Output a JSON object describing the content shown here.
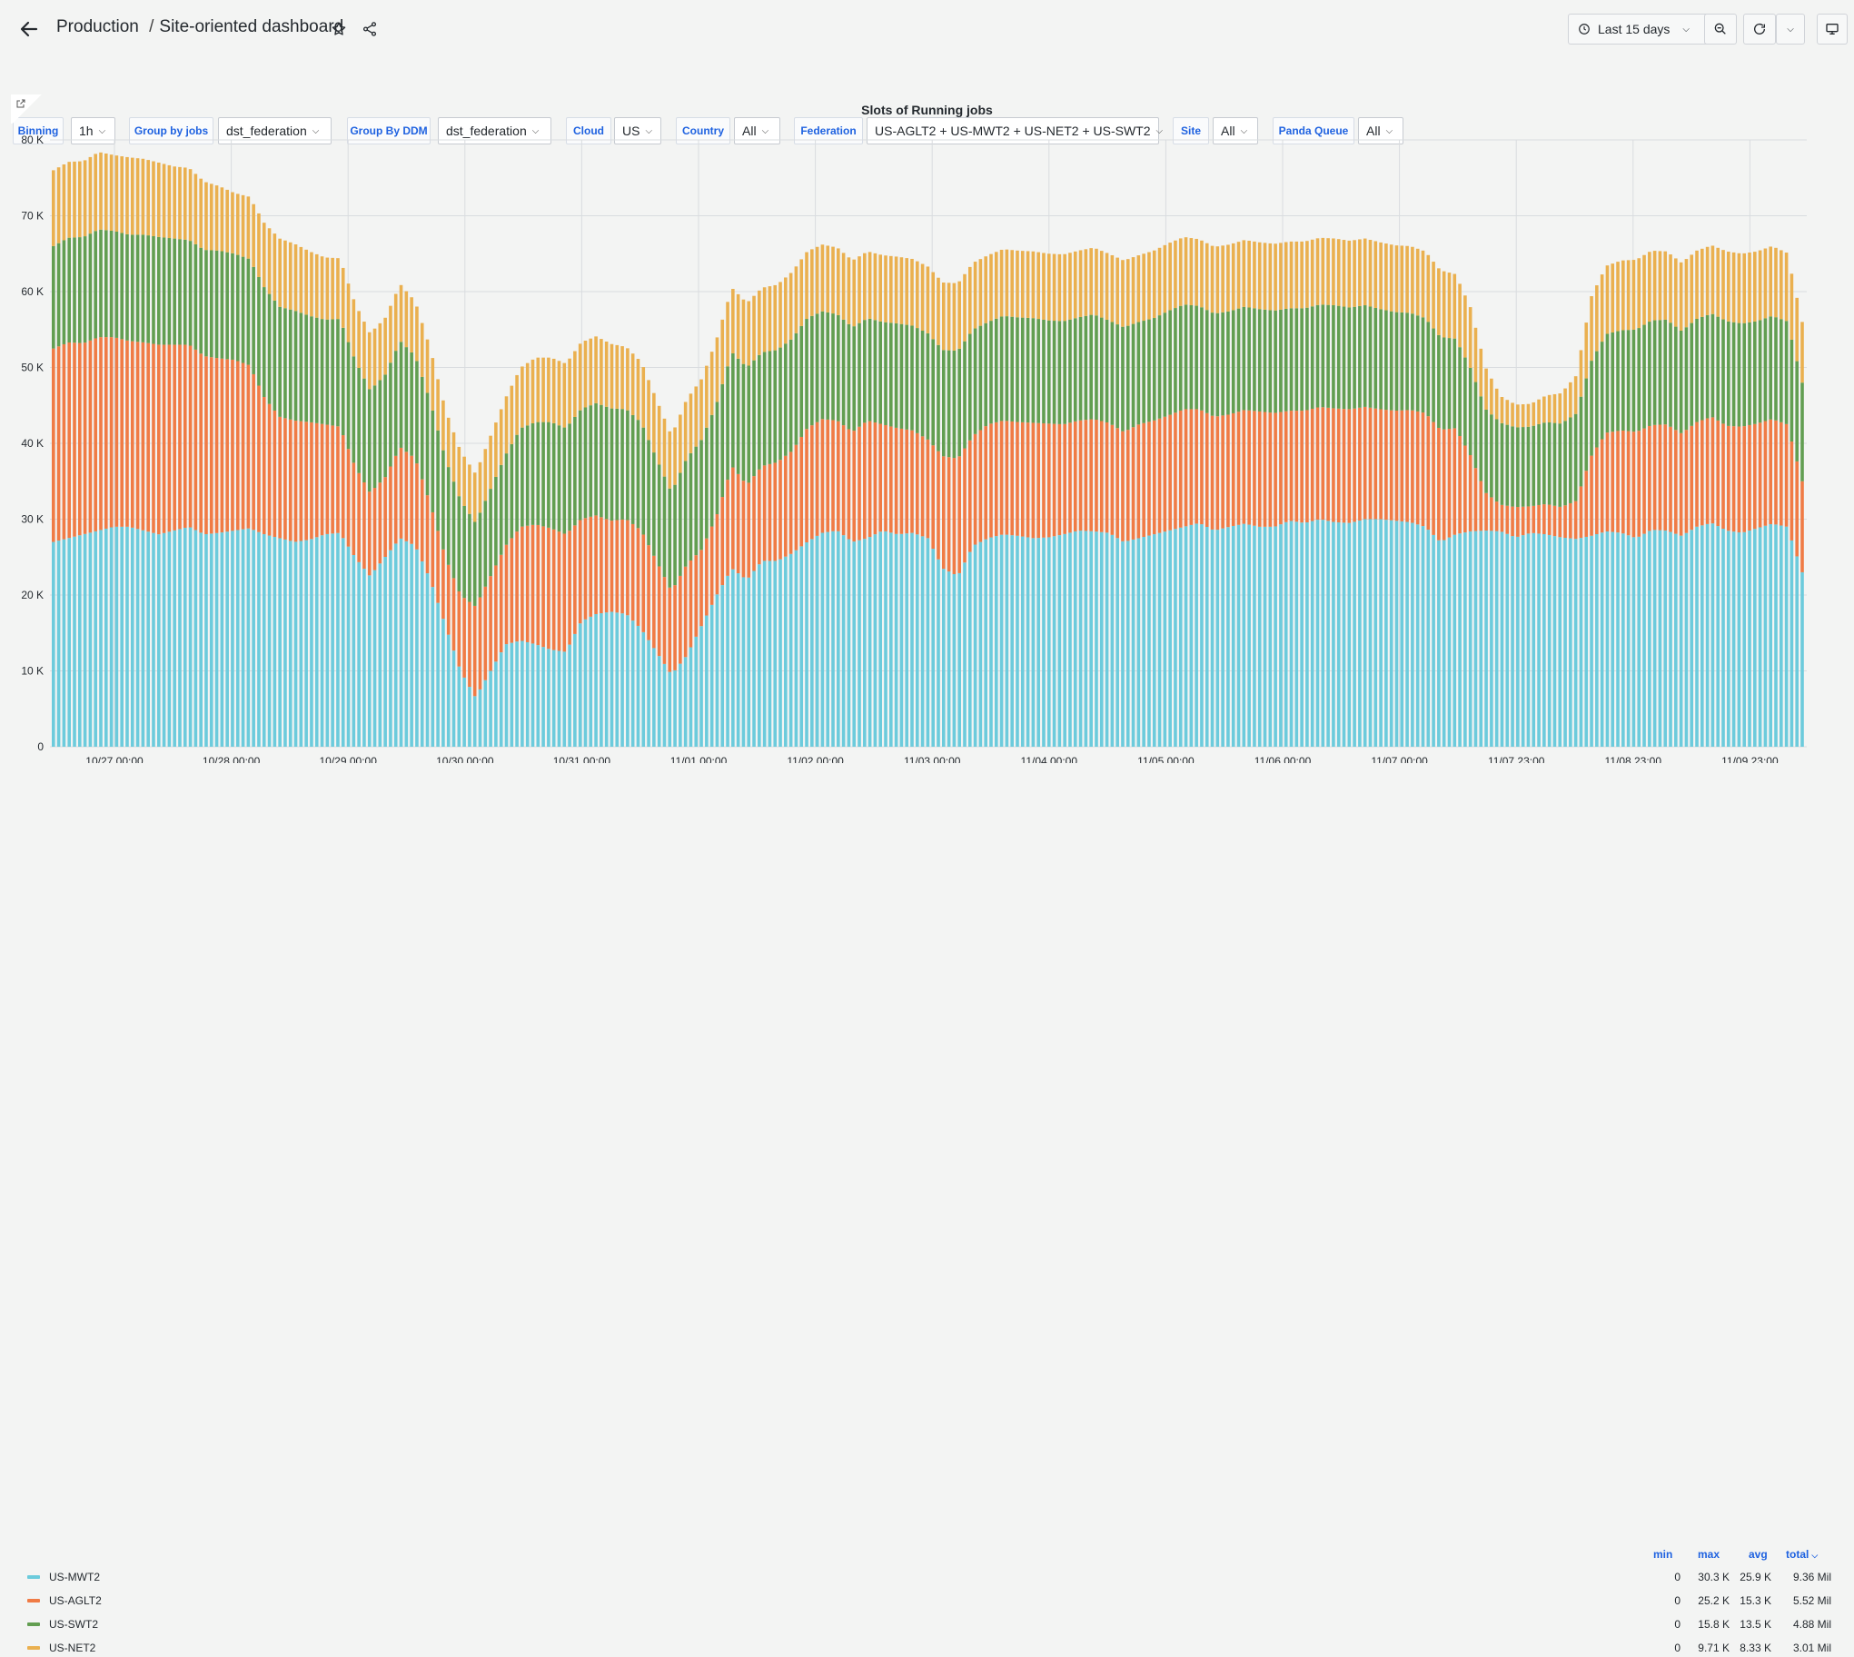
{
  "header": {
    "breadcrumb_parent": "Production",
    "separator": "/",
    "dashboard_title": "Site-oriented dashboard",
    "time_range": "Last 15 days"
  },
  "variables": [
    {
      "label": "Binning",
      "value": "1h"
    },
    {
      "label": "Group by jobs",
      "value": "dst_federation"
    },
    {
      "label": "Group By DDM",
      "value": "dst_federation"
    },
    {
      "label": "Cloud",
      "value": "US"
    },
    {
      "label": "Country",
      "value": "All"
    },
    {
      "label": "Federation",
      "value": "US-AGLT2 + US-MWT2 + US-NET2 + US-SWT2"
    },
    {
      "label": "Site",
      "value": "All"
    },
    {
      "label": "Panda Queue",
      "value": "All"
    }
  ],
  "panel": {
    "title": "Slots of Running jobs"
  },
  "chart_data": {
    "type": "bar",
    "stacked": true,
    "title": "Slots of Running jobs",
    "y_ticks": [
      "0",
      "10 K",
      "20 K",
      "30 K",
      "40 K",
      "50 K",
      "60 K",
      "70 K",
      "80 K"
    ],
    "ylim": [
      0,
      80000
    ],
    "x_ticks": [
      "10/27 00:00",
      "10/28 00:00",
      "10/29 00:00",
      "10/30 00:00",
      "10/31 00:00",
      "11/01 00:00",
      "11/02 00:00",
      "11/03 00:00",
      "11/04 00:00",
      "11/05 00:00",
      "11/06 00:00",
      "11/07 00:00",
      "11/07 23:00",
      "11/08 23:00",
      "11/09 23:00"
    ],
    "grid": true,
    "legend_position": "bottom",
    "series_order_bottom_to_top": [
      "US-MWT2",
      "US-AGLT2",
      "US-SWT2",
      "US-NET2"
    ],
    "series": [
      {
        "name": "US-MWT2",
        "color": "#6ccbdc",
        "anchors": [
          27000,
          27500,
          28000,
          28500,
          29000,
          29000,
          28500,
          28000,
          28500,
          29000,
          28000,
          28200,
          28500,
          28800,
          28000,
          27500,
          27000,
          27300,
          28000,
          28200,
          25000,
          22500,
          25000,
          27500,
          26500,
          22000,
          16000,
          10000,
          6500,
          10000,
          13500,
          14000,
          13500,
          12800,
          12500,
          16500,
          17500,
          17800,
          17500,
          15500,
          12500,
          9500,
          12000,
          16000,
          20000,
          23500,
          22000,
          24500,
          24500,
          25500,
          27000,
          28200,
          28500,
          27000,
          27500,
          28500,
          28000,
          28200,
          27500,
          23500,
          22500,
          26500,
          27500,
          28000,
          27800,
          27500,
          27600,
          28000,
          28500,
          28400,
          28200,
          27000,
          27500,
          28000,
          28500,
          29000,
          29500,
          28500,
          29000,
          29400,
          29000,
          29000,
          29800,
          29500,
          30000,
          29600,
          29500,
          30000,
          30000,
          29800,
          29600,
          29000,
          27000,
          28000,
          28400,
          28500,
          28400,
          27600,
          28200,
          28000,
          27600,
          27400,
          27800,
          28400,
          28200,
          27500,
          28600,
          28500,
          27800,
          29000,
          29500,
          28500,
          28200,
          28800,
          29400,
          29000,
          23000
        ]
      },
      {
        "name": "US-AGLT2",
        "color": "#f07b45",
        "anchors": [
          25500,
          25800,
          25200,
          25500,
          25000,
          24500,
          24800,
          25000,
          24500,
          24000,
          23500,
          23000,
          22500,
          21500,
          18000,
          16000,
          16000,
          15500,
          14500,
          14000,
          12000,
          11000,
          10500,
          12000,
          11500,
          10000,
          9000,
          10000,
          12000,
          12500,
          13000,
          15000,
          15800,
          16000,
          15500,
          13500,
          13000,
          12000,
          12500,
          13000,
          12000,
          11000,
          12000,
          10000,
          10500,
          13500,
          12500,
          12500,
          13000,
          13500,
          15000,
          15000,
          14500,
          14500,
          15500,
          14000,
          14000,
          13500,
          13000,
          14800,
          15500,
          14500,
          15000,
          15000,
          15000,
          15200,
          15000,
          14500,
          14500,
          14800,
          14500,
          14500,
          15000,
          15000,
          15200,
          15500,
          15000,
          15000,
          14800,
          15000,
          15200,
          15000,
          14500,
          14800,
          14800,
          15000,
          15000,
          14800,
          14500,
          14500,
          14800,
          15000,
          14800,
          14000,
          10000,
          5000,
          3500,
          4000,
          3500,
          4000,
          4000,
          5000,
          10500,
          13000,
          13500,
          14000,
          13800,
          14000,
          13500,
          13800,
          14000,
          13800,
          14000,
          13800,
          13800,
          13500,
          12000
        ]
      },
      {
        "name": "US-SWT2",
        "color": "#629e51",
        "anchors": [
          13500,
          13800,
          14000,
          14200,
          14000,
          14000,
          14200,
          14200,
          14000,
          13800,
          14000,
          14200,
          14000,
          14000,
          14500,
          14500,
          14500,
          14000,
          13800,
          14200,
          14000,
          13500,
          13500,
          14000,
          13500,
          13500,
          13000,
          12500,
          11000,
          11500,
          12000,
          13000,
          13500,
          14000,
          14000,
          14500,
          14800,
          14800,
          14500,
          14200,
          13500,
          13000,
          14000,
          14500,
          14800,
          15000,
          15500,
          15000,
          14800,
          14800,
          14500,
          14200,
          14000,
          13800,
          13500,
          13500,
          13800,
          13800,
          14000,
          14000,
          14200,
          14000,
          13500,
          13800,
          13800,
          13800,
          13600,
          13600,
          13600,
          13800,
          13500,
          13800,
          13500,
          13500,
          13800,
          13800,
          13600,
          13600,
          13600,
          13600,
          13500,
          13500,
          13500,
          13500,
          13500,
          13600,
          13400,
          13400,
          13200,
          13000,
          12800,
          12500,
          12200,
          11800,
          11500,
          11000,
          10800,
          10500,
          10500,
          10800,
          11000,
          11500,
          12500,
          13000,
          13200,
          13500,
          13800,
          13800,
          13500,
          13600,
          13600,
          13800,
          13600,
          13500,
          13600,
          13600,
          13000
        ]
      },
      {
        "name": "US-NET2",
        "color": "#eab04f",
        "anchors": [
          10000,
          10000,
          10000,
          10200,
          10000,
          10200,
          10000,
          9800,
          9500,
          9500,
          9000,
          8500,
          8000,
          8200,
          8500,
          9000,
          8800,
          8500,
          8200,
          8000,
          7500,
          7500,
          7500,
          7500,
          7200,
          7000,
          6500,
          6500,
          6500,
          7000,
          7500,
          8000,
          8500,
          8500,
          8500,
          8800,
          8800,
          8500,
          8200,
          8000,
          7800,
          7500,
          7800,
          8000,
          8500,
          8500,
          8500,
          8500,
          8600,
          8800,
          8800,
          8800,
          8800,
          8800,
          8800,
          8800,
          8800,
          8800,
          8800,
          8900,
          8900,
          8800,
          8800,
          8800,
          8800,
          8800,
          8800,
          8800,
          8800,
          8800,
          8800,
          8800,
          8800,
          8900,
          8900,
          8900,
          8800,
          8800,
          8800,
          8800,
          8800,
          8800,
          8800,
          8800,
          8800,
          8800,
          8800,
          8800,
          8800,
          8800,
          8800,
          8800,
          8800,
          8500,
          8000,
          5500,
          3500,
          3000,
          3000,
          3500,
          4000,
          5000,
          8500,
          9000,
          9200,
          9200,
          9200,
          9000,
          9000,
          9000,
          9000,
          9200,
          9200,
          9200,
          9200,
          9000,
          8000
        ]
      }
    ]
  },
  "legend": {
    "headers": {
      "min": "min",
      "max": "max",
      "avg": "avg",
      "total": "total"
    },
    "rows": [
      {
        "name": "US-MWT2",
        "color": "#6ccbdc",
        "min": "0",
        "max": "30.3 K",
        "avg": "25.9 K",
        "total": "9.36 Mil"
      },
      {
        "name": "US-AGLT2",
        "color": "#f07b45",
        "min": "0",
        "max": "25.2 K",
        "avg": "15.3 K",
        "total": "5.52 Mil"
      },
      {
        "name": "US-SWT2",
        "color": "#629e51",
        "min": "0",
        "max": "15.8 K",
        "avg": "13.5 K",
        "total": "4.88 Mil"
      },
      {
        "name": "US-NET2",
        "color": "#eab04f",
        "min": "0",
        "max": "9.71 K",
        "avg": "8.33 K",
        "total": "3.01 Mil"
      }
    ]
  }
}
